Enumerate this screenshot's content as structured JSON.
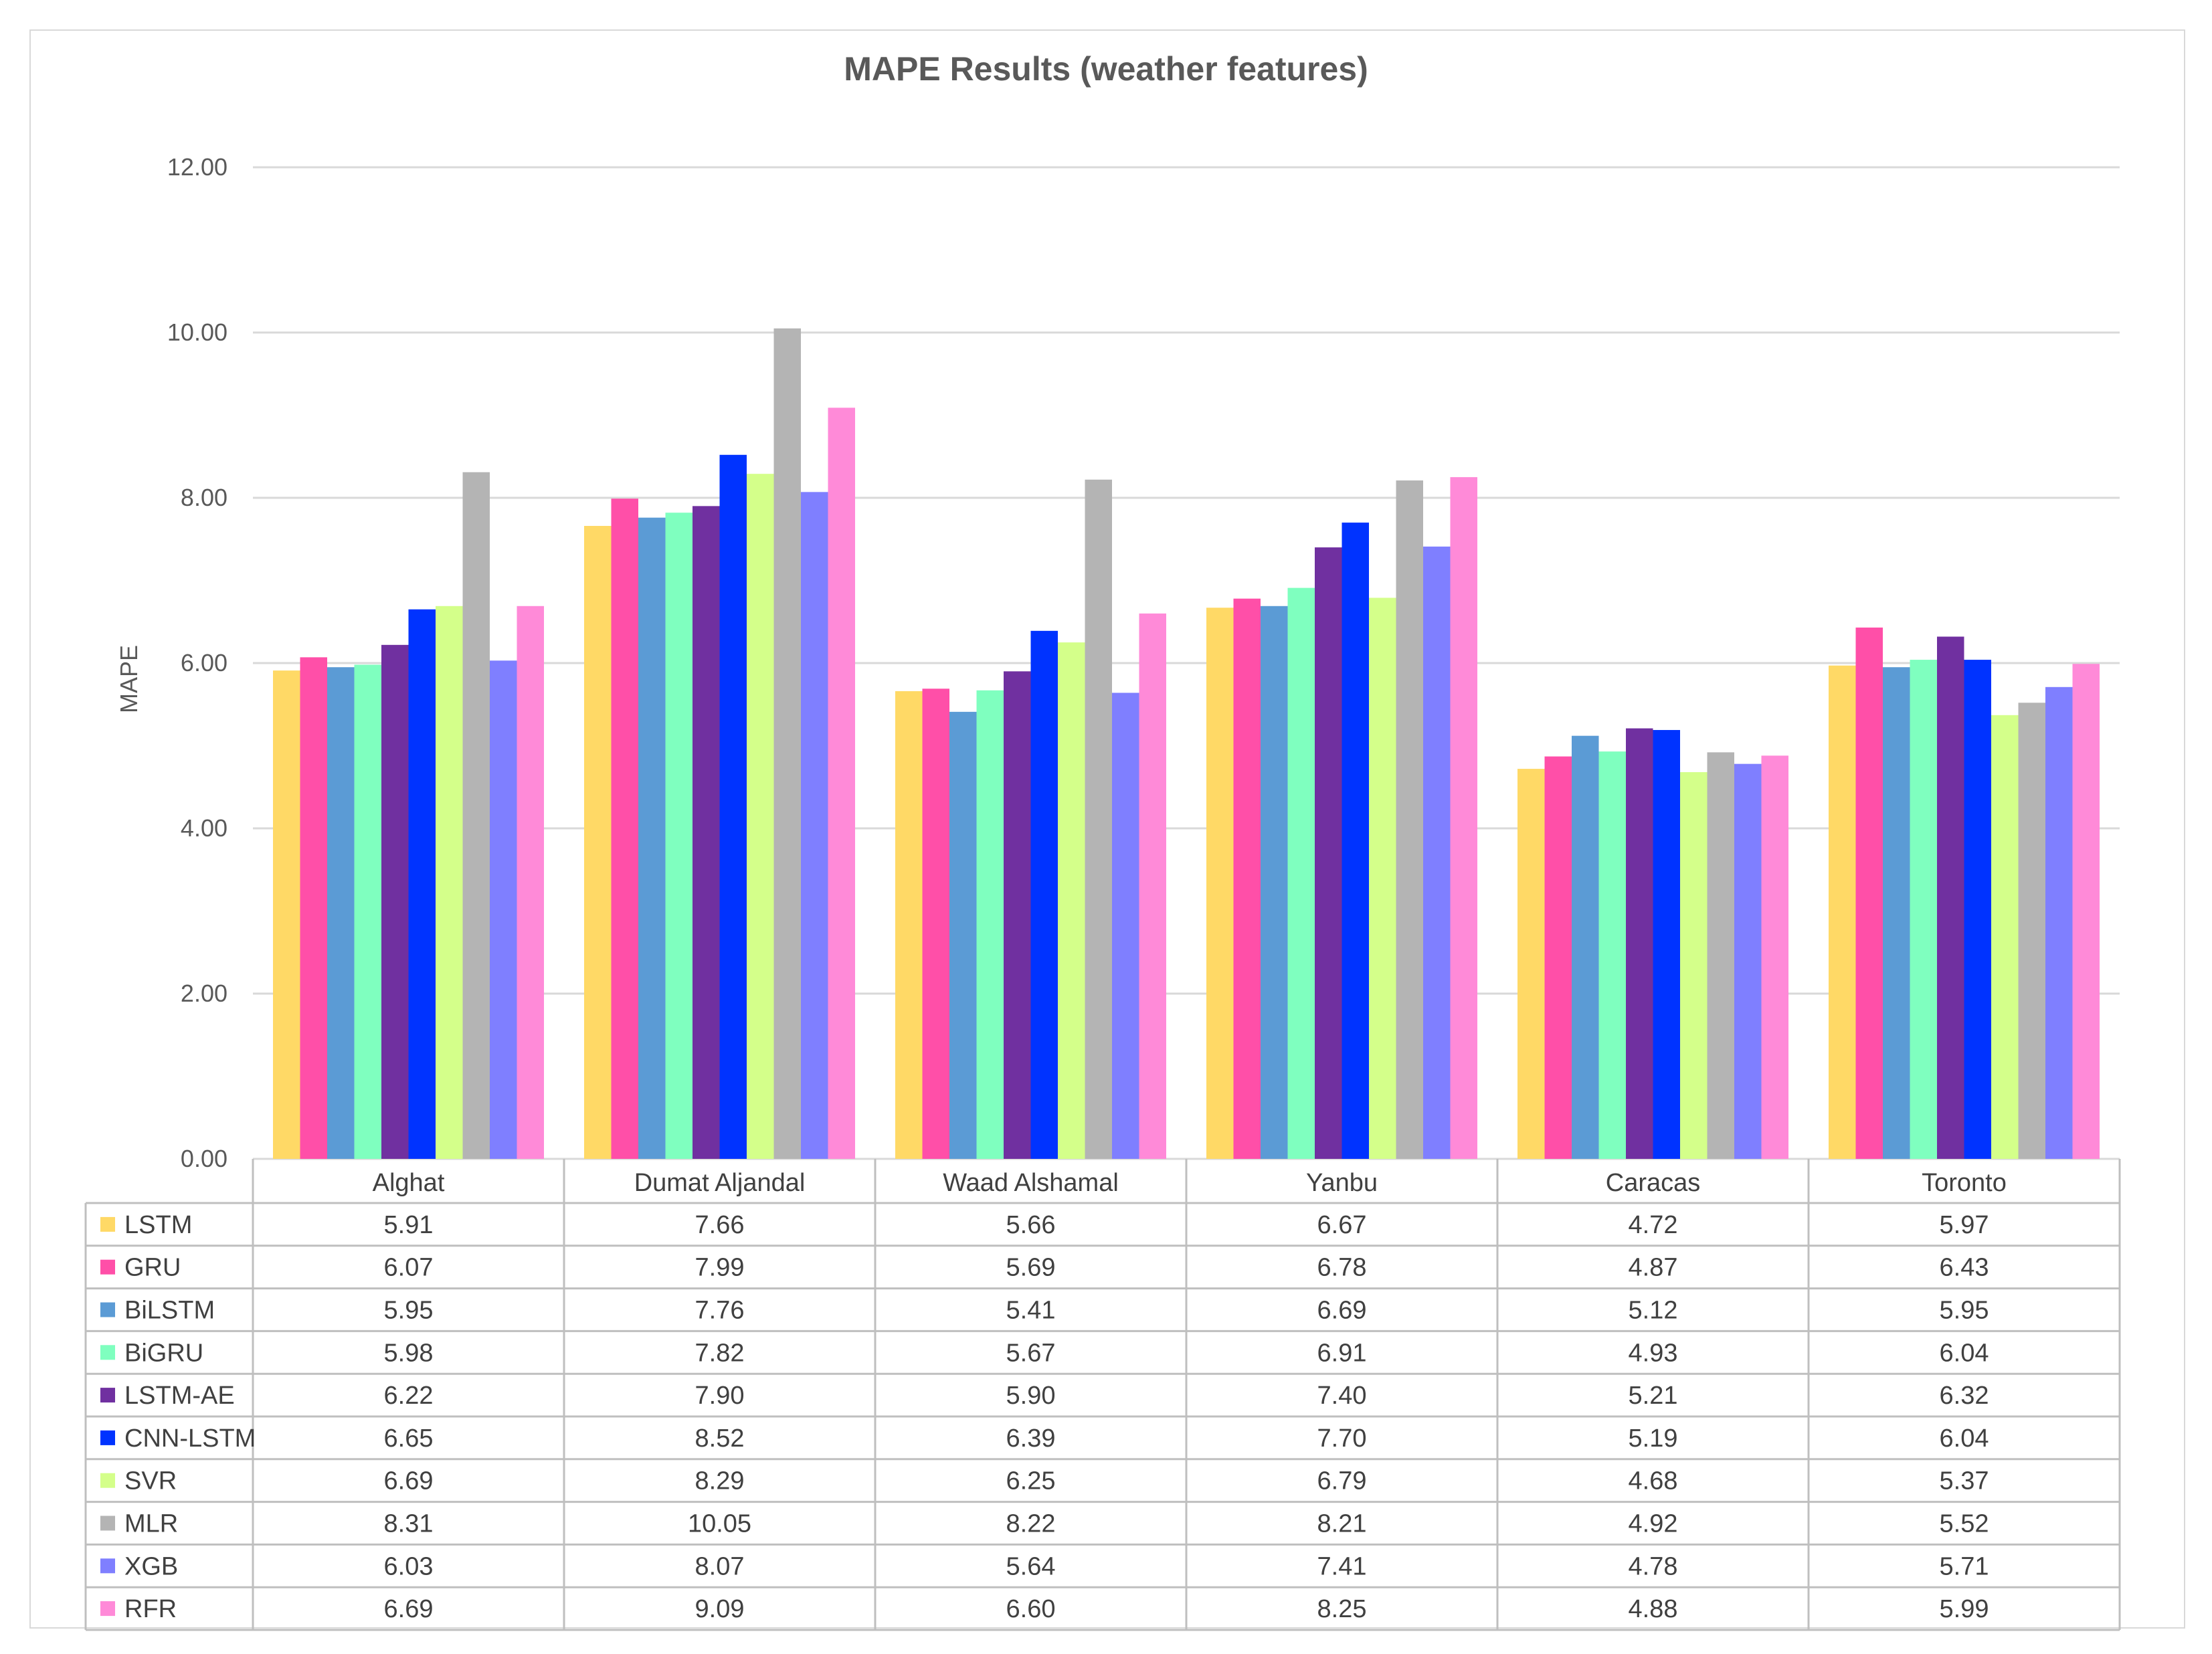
{
  "chart_data": {
    "type": "bar",
    "title": "MAPE Results (weather features)",
    "xlabel": "",
    "ylabel": "MAPE",
    "ylim": [
      0,
      12
    ],
    "yticks": [
      "0.00",
      "2.00",
      "4.00",
      "6.00",
      "8.00",
      "10.00",
      "12.00"
    ],
    "grid": true,
    "legend": "data-table-left",
    "categories": [
      "Alghat",
      "Dumat Aljandal",
      "Waad Alshamal",
      "Yanbu",
      "Caracas",
      "Toronto"
    ],
    "series": [
      {
        "name": "LSTM",
        "color": "#FFD966",
        "values": [
          5.91,
          7.66,
          5.66,
          6.67,
          4.72,
          5.97
        ],
        "labels": [
          "5.91",
          "7.66",
          "5.66",
          "6.67",
          "4.72",
          "5.97"
        ]
      },
      {
        "name": "GRU",
        "color": "#FF4FA8",
        "values": [
          6.07,
          7.99,
          5.69,
          6.78,
          4.87,
          6.43
        ],
        "labels": [
          "6.07",
          "7.99",
          "5.69",
          "6.78",
          "4.87",
          "6.43"
        ]
      },
      {
        "name": "BiLSTM",
        "color": "#5B9BD5",
        "values": [
          5.95,
          7.76,
          5.41,
          6.69,
          5.12,
          5.95
        ],
        "labels": [
          "5.95",
          "7.76",
          "5.41",
          "6.69",
          "5.12",
          "5.95"
        ]
      },
      {
        "name": "BiGRU",
        "color": "#7FFFBF",
        "values": [
          5.98,
          7.82,
          5.67,
          6.91,
          4.93,
          6.04
        ],
        "labels": [
          "5.98",
          "7.82",
          "5.67",
          "6.91",
          "4.93",
          "6.04"
        ]
      },
      {
        "name": "LSTM-AE",
        "color": "#7030A0",
        "values": [
          6.22,
          7.9,
          5.9,
          7.4,
          5.21,
          6.32
        ],
        "labels": [
          "6.22",
          "7.90",
          "5.90",
          "7.40",
          "5.21",
          "6.32"
        ]
      },
      {
        "name": "CNN-LSTM",
        "color": "#0033FF",
        "values": [
          6.65,
          8.52,
          6.39,
          7.7,
          5.19,
          6.04
        ],
        "labels": [
          "6.65",
          "8.52",
          "6.39",
          "7.70",
          "5.19",
          "6.04"
        ]
      },
      {
        "name": "SVR",
        "color": "#D4FF8A",
        "values": [
          6.69,
          8.29,
          6.25,
          6.79,
          4.68,
          5.37
        ],
        "labels": [
          "6.69",
          "8.29",
          "6.25",
          "6.79",
          "4.68",
          "5.37"
        ]
      },
      {
        "name": "MLR",
        "color": "#B4B4B4",
        "values": [
          8.31,
          10.05,
          8.22,
          8.21,
          4.92,
          5.52
        ],
        "labels": [
          "8.31",
          "10.05",
          "8.22",
          "8.21",
          "4.92",
          "5.52"
        ]
      },
      {
        "name": "XGB",
        "color": "#7F7FFF",
        "values": [
          6.03,
          8.07,
          5.64,
          7.41,
          4.78,
          5.71
        ],
        "labels": [
          "6.03",
          "8.07",
          "5.64",
          "7.41",
          "4.78",
          "5.71"
        ]
      },
      {
        "name": "RFR",
        "color": "#FF8AD8",
        "values": [
          6.69,
          9.09,
          6.6,
          8.25,
          4.88,
          5.99
        ],
        "labels": [
          "6.69",
          "9.09",
          "6.60",
          "8.25",
          "4.88",
          "5.99"
        ]
      }
    ]
  }
}
